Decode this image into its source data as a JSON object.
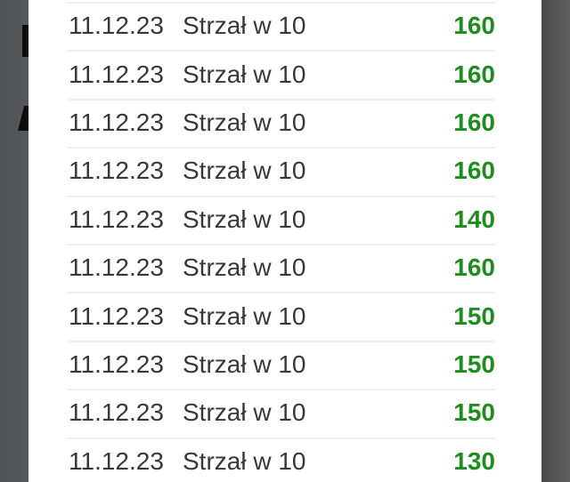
{
  "colors": {
    "value_green": "#1e8c1e",
    "backdrop_gray": "#55585a",
    "row_text": "#383838",
    "divider": "#efefef"
  },
  "background_fragments": {
    "description": "partial dark letters of underlying screen visible on dimmed left edge"
  },
  "table": {
    "rows": [
      {
        "date": "11.12.23",
        "label": "Strzał w 10",
        "value": "160"
      },
      {
        "date": "11.12.23",
        "label": "Strzał w 10",
        "value": "160"
      },
      {
        "date": "11.12.23",
        "label": "Strzał w 10",
        "value": "160"
      },
      {
        "date": "11.12.23",
        "label": "Strzał w 10",
        "value": "160"
      },
      {
        "date": "11.12.23",
        "label": "Strzał w 10",
        "value": "140"
      },
      {
        "date": "11.12.23",
        "label": "Strzał w 10",
        "value": "160"
      },
      {
        "date": "11.12.23",
        "label": "Strzał w 10",
        "value": "150"
      },
      {
        "date": "11.12.23",
        "label": "Strzał w 10",
        "value": "150"
      },
      {
        "date": "11.12.23",
        "label": "Strzał w 10",
        "value": "150"
      },
      {
        "date": "11.12.23",
        "label": "Strzał w 10",
        "value": "130"
      }
    ]
  }
}
